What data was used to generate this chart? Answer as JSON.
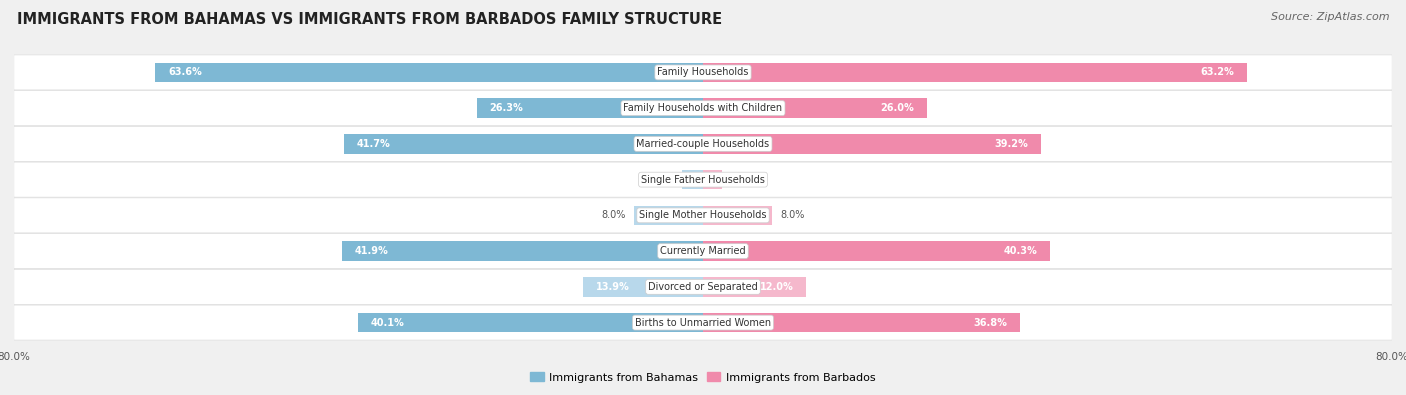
{
  "title": "IMMIGRANTS FROM BAHAMAS VS IMMIGRANTS FROM BARBADOS FAMILY STRUCTURE",
  "source": "Source: ZipAtlas.com",
  "categories": [
    "Family Households",
    "Family Households with Children",
    "Married-couple Households",
    "Single Father Households",
    "Single Mother Households",
    "Currently Married",
    "Divorced or Separated",
    "Births to Unmarried Women"
  ],
  "bahamas_values": [
    63.6,
    26.3,
    41.7,
    2.4,
    8.0,
    41.9,
    13.9,
    40.1
  ],
  "barbados_values": [
    63.2,
    26.0,
    39.2,
    2.2,
    8.0,
    40.3,
    12.0,
    36.8
  ],
  "x_max": 80.0,
  "bahamas_color": "#7eb8d4",
  "barbados_color": "#f08aab",
  "bahamas_color_light": "#b8d8eb",
  "barbados_color_light": "#f5b8cc",
  "bahamas_label": "Immigrants from Bahamas",
  "barbados_label": "Immigrants from Barbados",
  "bg_color": "#f0f0f0",
  "row_bg_even": "#e8e8e8",
  "row_bg_odd": "#f8f8f8",
  "title_fontsize": 10.5,
  "source_fontsize": 8,
  "label_fontsize": 7,
  "value_fontsize": 7,
  "legend_fontsize": 8,
  "axis_label_fontsize": 7.5
}
